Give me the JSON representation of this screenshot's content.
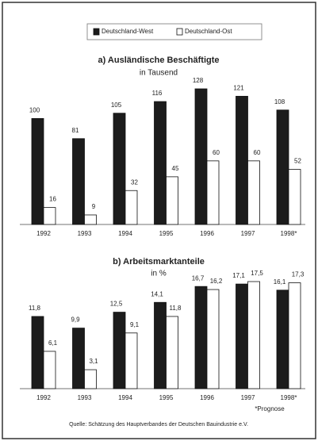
{
  "chart_data": [
    {
      "type": "bar",
      "title": "a) Ausländische Beschäftigte",
      "subtitle": "in Tausend",
      "categories": [
        "1992",
        "1993",
        "1994",
        "1995",
        "1996",
        "1997",
        "1998*"
      ],
      "series": [
        {
          "name": "Deutschland-West",
          "color": "#1c1c1c",
          "values": [
            100,
            81,
            105,
            116,
            128,
            121,
            108
          ]
        },
        {
          "name": "Deutschland-Ost",
          "color": "#ffffff",
          "values": [
            16,
            9,
            32,
            45,
            60,
            60,
            52
          ]
        }
      ],
      "legend": "top"
    },
    {
      "type": "bar",
      "title": "b) Arbeitsmarktanteile",
      "subtitle": "in %",
      "categories": [
        "1992",
        "1993",
        "1994",
        "1995",
        "1996",
        "1997",
        "1998*"
      ],
      "series": [
        {
          "name": "Deutschland-West",
          "color": "#1c1c1c",
          "values": [
            11.8,
            9.9,
            12.5,
            14.1,
            16.7,
            17.1,
            16.1
          ],
          "value_labels": [
            "11,8",
            "9,9",
            "12,5",
            "14,1",
            "16,7",
            "17,1",
            "16,1"
          ]
        },
        {
          "name": "Deutschland-Ost",
          "color": "#ffffff",
          "values": [
            6.1,
            3.1,
            9.1,
            11.8,
            16.2,
            17.5,
            17.3
          ],
          "value_labels": [
            "6,1",
            "3,1",
            "9,1",
            "11,8",
            "16,2",
            "17,5",
            "17,3"
          ]
        }
      ]
    }
  ],
  "footnote": "*Prognose",
  "source": "Quelle: Schätzung des Hauptverbandes der Deutschen Bauindustrie e.V."
}
